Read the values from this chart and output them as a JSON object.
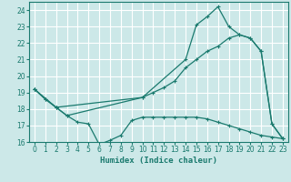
{
  "xlabel": "Humidex (Indice chaleur)",
  "bg_color": "#cce8e8",
  "grid_color": "#ffffff",
  "line_color": "#1a7a6e",
  "xlim": [
    -0.5,
    23.5
  ],
  "ylim": [
    16,
    24.5
  ],
  "yticks": [
    16,
    17,
    18,
    19,
    20,
    21,
    22,
    23,
    24
  ],
  "xticks": [
    0,
    1,
    2,
    3,
    4,
    5,
    6,
    7,
    8,
    9,
    10,
    11,
    12,
    13,
    14,
    15,
    16,
    17,
    18,
    19,
    20,
    21,
    22,
    23
  ],
  "curve1_x": [
    0,
    1,
    2,
    3,
    4,
    5,
    6,
    7,
    8,
    9,
    10,
    11,
    12,
    13,
    14,
    15,
    16,
    17,
    18,
    19,
    20,
    21,
    22,
    23
  ],
  "curve1_y": [
    19.2,
    18.6,
    18.1,
    17.6,
    17.2,
    17.1,
    15.85,
    16.1,
    16.4,
    17.3,
    17.5,
    17.5,
    17.5,
    17.5,
    17.5,
    17.5,
    17.4,
    17.2,
    17.0,
    16.8,
    16.6,
    16.4,
    16.3,
    16.2
  ],
  "curve2_x": [
    0,
    1,
    2,
    3,
    10,
    11,
    12,
    13,
    14,
    15,
    16,
    17,
    18,
    19,
    20,
    21,
    22,
    23
  ],
  "curve2_y": [
    19.2,
    18.6,
    18.1,
    17.6,
    18.7,
    19.0,
    19.3,
    19.7,
    20.5,
    21.0,
    21.5,
    21.8,
    22.3,
    22.5,
    22.3,
    21.5,
    17.1,
    16.2
  ],
  "curve3_x": [
    0,
    2,
    10,
    14,
    15,
    16,
    17,
    18,
    19,
    20,
    21,
    22,
    23
  ],
  "curve3_y": [
    19.2,
    18.1,
    18.7,
    21.0,
    23.1,
    23.6,
    24.2,
    23.0,
    22.5,
    22.3,
    21.5,
    17.1,
    16.2
  ]
}
